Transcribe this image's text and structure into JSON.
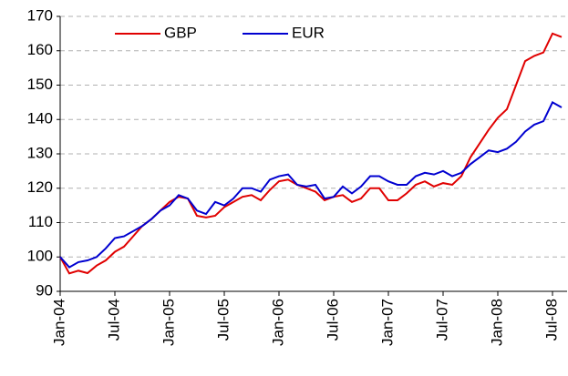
{
  "chart_data": {
    "type": "line",
    "categories": [
      "Jan-04",
      null,
      null,
      null,
      null,
      null,
      "Jul-04",
      null,
      null,
      null,
      null,
      null,
      "Jan-05",
      null,
      null,
      null,
      null,
      null,
      "Jul-05",
      null,
      null,
      null,
      null,
      null,
      "Jan-06",
      null,
      null,
      null,
      null,
      null,
      "Jul-06",
      null,
      null,
      null,
      null,
      null,
      "Jan-07",
      null,
      null,
      null,
      null,
      null,
      "Jul-07",
      null,
      null,
      null,
      null,
      null,
      "Jan-08",
      null,
      null,
      null,
      null,
      null,
      "Jul-08",
      null
    ],
    "series": [
      {
        "name": "GBP",
        "color": "#e00000",
        "values": [
          100,
          95.2,
          96,
          95.3,
          97.5,
          99,
          101.5,
          103,
          106,
          109,
          111,
          113.5,
          116,
          117.5,
          117,
          112,
          111.5,
          112,
          114.5,
          116,
          117.5,
          118,
          116.5,
          119.5,
          122,
          122.5,
          121,
          120,
          119,
          116.5,
          117.5,
          118,
          116,
          117,
          120,
          120,
          116.5,
          116.5,
          118.5,
          121,
          122,
          120.5,
          121.5,
          121,
          123.5,
          129,
          133,
          137,
          140.5,
          143,
          150,
          157,
          158.5,
          159.5,
          165,
          164
        ]
      },
      {
        "name": "EUR",
        "color": "#0000d0",
        "values": [
          100,
          97,
          98.5,
          99,
          100,
          102.5,
          105.5,
          106,
          107.5,
          109,
          111,
          113.5,
          115,
          118,
          117,
          113.5,
          112.5,
          116,
          115,
          117,
          120,
          120,
          119,
          122.5,
          123.5,
          124,
          121,
          120.5,
          121,
          117,
          117.5,
          120.5,
          118.5,
          120.5,
          123.5,
          123.5,
          122,
          121,
          121,
          123.5,
          124.5,
          124,
          125,
          123.5,
          124.5,
          127,
          129,
          131,
          130.5,
          131.5,
          133.5,
          136.5,
          138.5,
          139.5,
          145,
          143.5
        ]
      }
    ],
    "ylim": [
      90,
      170
    ],
    "yticks": [
      90,
      100,
      110,
      120,
      130,
      140,
      150,
      160,
      170
    ],
    "grid": true,
    "legend": "top-left"
  }
}
